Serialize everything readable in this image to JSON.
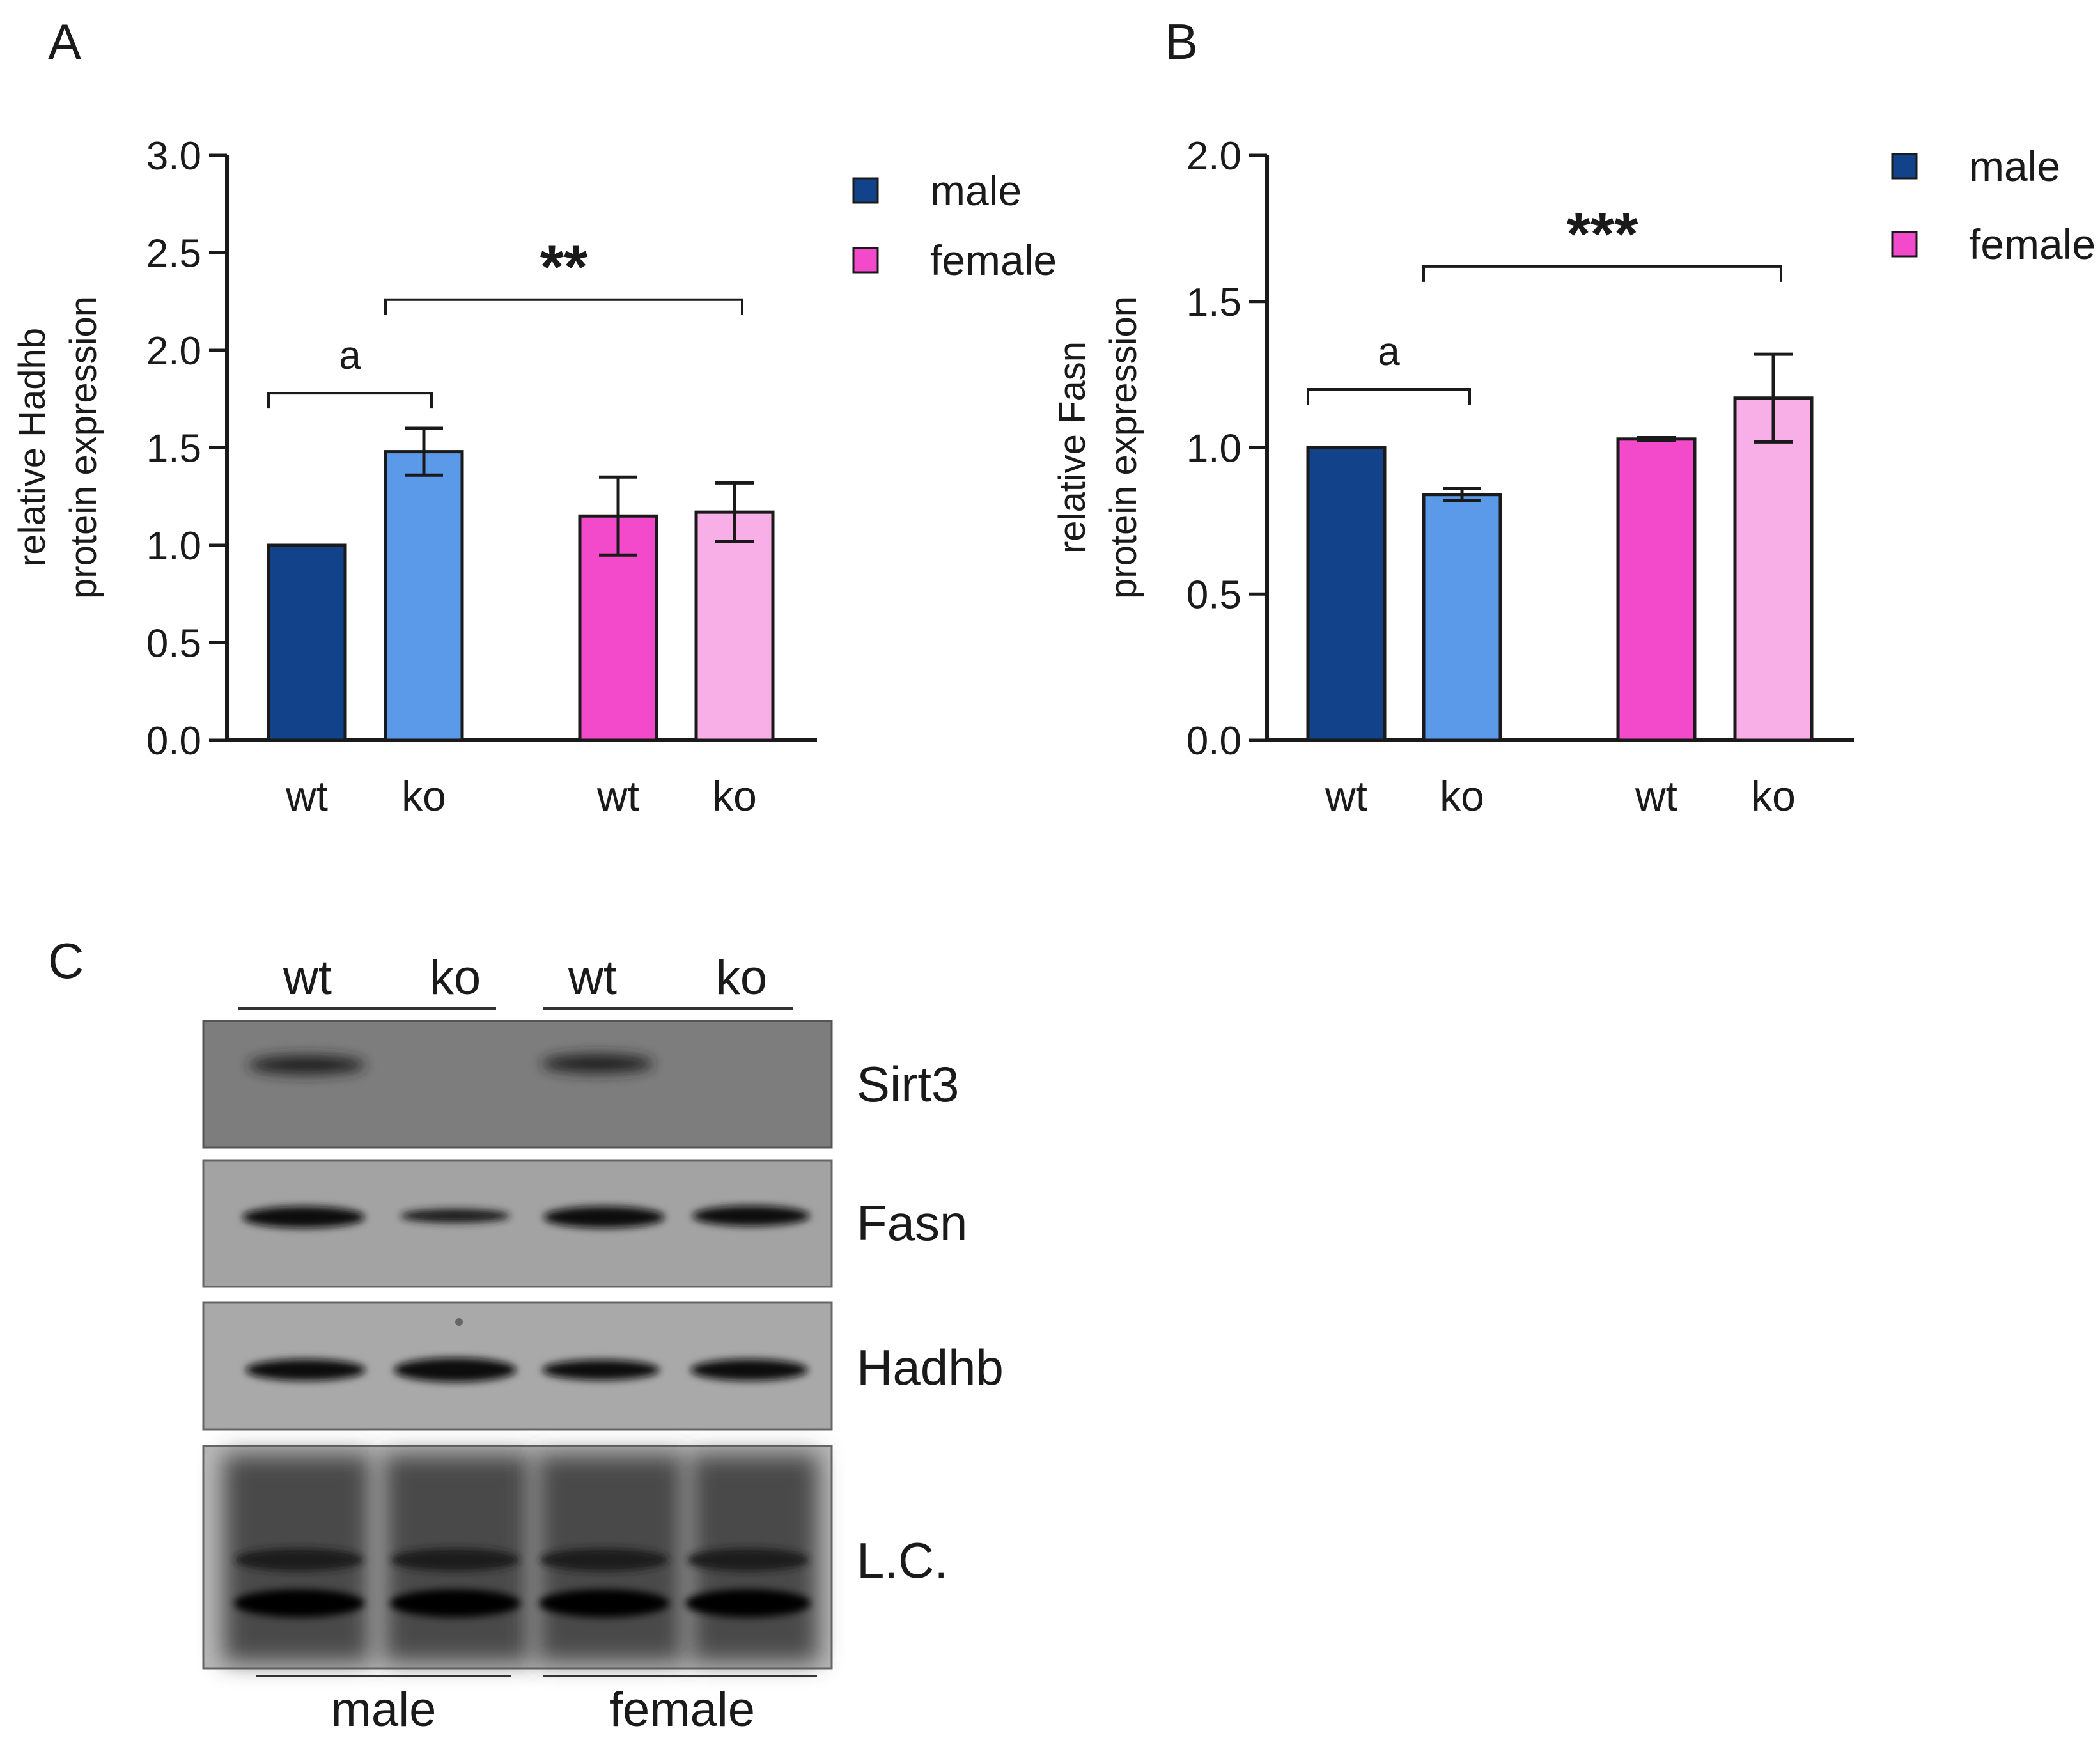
{
  "panels": {
    "a": {
      "letter": "A"
    },
    "b": {
      "letter": "B"
    },
    "c": {
      "letter": "C"
    }
  },
  "colors": {
    "male_wt": "#12428a",
    "male_ko": "#5a9ae8",
    "female_wt": "#f24acb",
    "female_ko": "#f8aee6",
    "axis": "#1a1a1a"
  },
  "chart_data": [
    {
      "id": "A",
      "type": "bar",
      "ylabel": [
        "relative Hadhb",
        "protein expression"
      ],
      "ylim": [
        0,
        3.0
      ],
      "yticks": [
        "0.0",
        "0.5",
        "1.0",
        "1.5",
        "2.0",
        "2.5",
        "3.0"
      ],
      "categories": [
        "wt",
        "ko",
        "wt",
        "ko"
      ],
      "groups": [
        "male",
        "male",
        "female",
        "female"
      ],
      "values": [
        1.0,
        1.48,
        1.15,
        1.17
      ],
      "errors": [
        0,
        0.12,
        0.2,
        0.15
      ],
      "legend": [
        "male",
        "female"
      ],
      "legend_position": "top-right",
      "annotations": [
        {
          "text": "a",
          "from": 0,
          "to": 1,
          "y": 1.78
        },
        {
          "text": "**",
          "from": 1,
          "to": 3,
          "y": 2.26
        }
      ]
    },
    {
      "id": "B",
      "type": "bar",
      "ylabel": [
        "relative Fasn",
        "protein expression"
      ],
      "ylim": [
        0,
        2.0
      ],
      "yticks": [
        "0.0",
        "0.5",
        "1.0",
        "1.5",
        "2.0"
      ],
      "categories": [
        "wt",
        "ko",
        "wt",
        "ko"
      ],
      "groups": [
        "male",
        "male",
        "female",
        "female"
      ],
      "values": [
        1.0,
        0.84,
        1.03,
        1.17
      ],
      "errors": [
        0,
        0.02,
        0.005,
        0.15
      ],
      "legend": [
        "male",
        "female"
      ],
      "legend_position": "top-right",
      "annotations": [
        {
          "text": "a",
          "from": 0,
          "to": 1,
          "y": 1.2
        },
        {
          "text": "***",
          "from": 1,
          "to": 3,
          "y": 1.62
        }
      ]
    }
  ],
  "blot": {
    "lanes": [
      "wt",
      "ko",
      "wt",
      "ko"
    ],
    "proteins": [
      "Sirt3",
      "Fasn",
      "Hadhb",
      "L.C."
    ],
    "groups": [
      "male",
      "female"
    ]
  }
}
